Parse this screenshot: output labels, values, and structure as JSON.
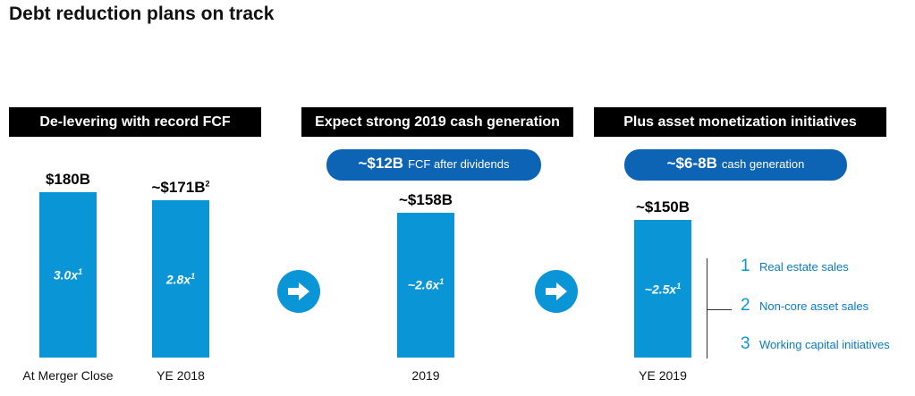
{
  "title": "Debt reduction plans on track",
  "sections": [
    {
      "header": "De-levering with record FCF"
    },
    {
      "header": "Expect strong 2019 cash generation",
      "pill_big": "~$12B",
      "pill_small": "FCF after dividends"
    },
    {
      "header": "Plus asset monetization initiatives",
      "pill_big": "~$6-8B",
      "pill_small": "cash generation"
    }
  ],
  "chart_data": {
    "type": "bar",
    "title": "",
    "xlabel": "",
    "ylabel": "",
    "categories": [
      "At Merger Close",
      "YE 2018",
      "2019",
      "YE 2019"
    ],
    "series": [
      {
        "values": [
          180,
          171,
          158,
          150
        ],
        "value_labels": [
          "$180B",
          "~$171B",
          "~$158B",
          "~$150B"
        ],
        "value_label_superscripts": [
          "",
          "2",
          "",
          ""
        ],
        "leverage_labels": [
          "3.0x",
          "2.8x",
          "~2.6x",
          "~2.5x"
        ],
        "leverage_superscripts": [
          "1",
          "1",
          "1",
          "1"
        ]
      }
    ],
    "ylim": [
      0,
      180
    ],
    "grid": false,
    "legend": "none",
    "bar_color": "#0a96d6"
  },
  "initiatives": [
    {
      "number": "1",
      "label": "Real estate sales"
    },
    {
      "number": "2",
      "label": "Non-core asset sales"
    },
    {
      "number": "3",
      "label": "Working capital initiatives"
    }
  ],
  "colors": {
    "bar": "#0a96d6",
    "pill": "#0d63b4",
    "header": "#000000",
    "accent_text": "#0a7bc4"
  },
  "icons": [
    "right-arrow-icon",
    "right-arrow-icon"
  ]
}
